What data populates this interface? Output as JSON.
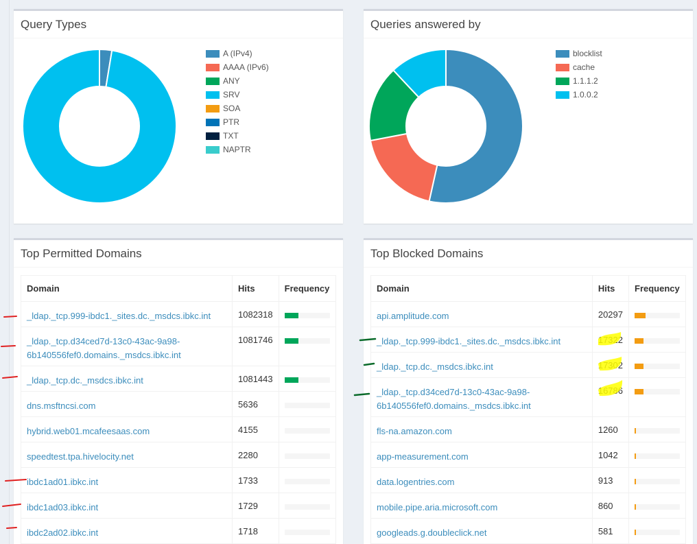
{
  "query_types": {
    "title": "Query Types",
    "legend": [
      {
        "label": "A (IPv4)",
        "color": "#3c8dbc"
      },
      {
        "label": "AAAA (IPv6)",
        "color": "#f56954"
      },
      {
        "label": "ANY",
        "color": "#00a65a"
      },
      {
        "label": "SRV",
        "color": "#00c0ef"
      },
      {
        "label": "SOA",
        "color": "#f39c12"
      },
      {
        "label": "PTR",
        "color": "#0073b7"
      },
      {
        "label": "TXT",
        "color": "#001f3f"
      },
      {
        "label": "NAPTR",
        "color": "#39cccc"
      }
    ]
  },
  "answered_by": {
    "title": "Queries answered by",
    "legend": [
      {
        "label": "blocklist",
        "color": "#3c8dbc"
      },
      {
        "label": "cache",
        "color": "#f56954"
      },
      {
        "label": "1.1.1.2",
        "color": "#00a65a"
      },
      {
        "label": "1.0.0.2",
        "color": "#00c0ef"
      }
    ]
  },
  "chart_data": [
    {
      "type": "pie",
      "title": "Query Types",
      "categories": [
        "A (IPv4)",
        "AAAA (IPv6)",
        "ANY",
        "SRV",
        "SOA",
        "PTR",
        "TXT",
        "NAPTR"
      ],
      "values": [
        2.6,
        0,
        0,
        97.4,
        0,
        0,
        0,
        0
      ],
      "colors": [
        "#3c8dbc",
        "#f56954",
        "#00a65a",
        "#00c0ef",
        "#f39c12",
        "#0073b7",
        "#001f3f",
        "#39cccc"
      ],
      "legend": "right"
    },
    {
      "type": "pie",
      "title": "Queries answered by",
      "categories": [
        "blocklist",
        "cache",
        "1.1.1.2",
        "1.0.0.2"
      ],
      "values": [
        53.5,
        18.5,
        16,
        12
      ],
      "colors": [
        "#3c8dbc",
        "#f56954",
        "#00a65a",
        "#00c0ef"
      ],
      "legend": "right"
    }
  ],
  "permitted": {
    "title": "Top Permitted Domains",
    "headers": {
      "domain": "Domain",
      "hits": "Hits",
      "frequency": "Frequency"
    },
    "bar_color": "#00a65a",
    "rows": [
      {
        "domain": "_ldap._tcp.999-ibdc1._sites.dc._msdcs.ibkc.int",
        "hits": "1082318",
        "freq": 0.3
      },
      {
        "domain": "_ldap._tcp.d34ced7d-13c0-43ac-9a98-6b140556fef0.domains._msdcs.ibkc.int",
        "domain_l1": "_ldap._tcp.d34ced7d-13c0-43ac-9a98-",
        "domain_l2": "6b140556fef0.domains._msdcs.ibkc.int",
        "hits": "1081746",
        "freq": 0.3
      },
      {
        "domain": "_ldap._tcp.dc._msdcs.ibkc.int",
        "hits": "1081443",
        "freq": 0.3
      },
      {
        "domain": "dns.msftncsi.com",
        "hits": "5636",
        "freq": 0
      },
      {
        "domain": "hybrid.web01.mcafeesaas.com",
        "hits": "4155",
        "freq": 0
      },
      {
        "domain": "speedtest.tpa.hivelocity.net",
        "hits": "2280",
        "freq": 0
      },
      {
        "domain": "ibdc1ad01.ibkc.int",
        "hits": "1733",
        "freq": 0
      },
      {
        "domain": "ibdc1ad03.ibkc.int",
        "hits": "1729",
        "freq": 0
      },
      {
        "domain": "ibdc2ad02.ibkc.int",
        "hits": "1718",
        "freq": 0
      }
    ]
  },
  "blocked": {
    "title": "Top Blocked Domains",
    "headers": {
      "domain": "Domain",
      "hits": "Hits",
      "frequency": "Frequency"
    },
    "bar_color": "#f39c12",
    "rows": [
      {
        "domain": "api.amplitude.com",
        "hits": "20297",
        "freq": 0.24
      },
      {
        "domain": "_ldap._tcp.999-ibdc1._sites.dc._msdcs.ibkc.int",
        "hits": "17322",
        "freq": 0.2
      },
      {
        "domain": "_ldap._tcp.dc._msdcs.ibkc.int",
        "hits": "17302",
        "freq": 0.2
      },
      {
        "domain": "_ldap._tcp.d34ced7d-13c0-43ac-9a98-6b140556fef0.domains._msdcs.ibkc.int",
        "domain_l1": "_ldap._tcp.d34ced7d-13c0-43ac-9a98-",
        "domain_l2": "6b140556fef0.domains._msdcs.ibkc.int",
        "hits": "16786",
        "freq": 0.2
      },
      {
        "domain": "fls-na.amazon.com",
        "hits": "1260",
        "freq": 0.02
      },
      {
        "domain": "app-measurement.com",
        "hits": "1042",
        "freq": 0.02
      },
      {
        "domain": "data.logentries.com",
        "hits": "913",
        "freq": 0.02
      },
      {
        "domain": "mobile.pipe.aria.microsoft.com",
        "hits": "860",
        "freq": 0.02
      },
      {
        "domain": "googleads.g.doubleclick.net",
        "hits": "581",
        "freq": 0.01
      }
    ]
  }
}
